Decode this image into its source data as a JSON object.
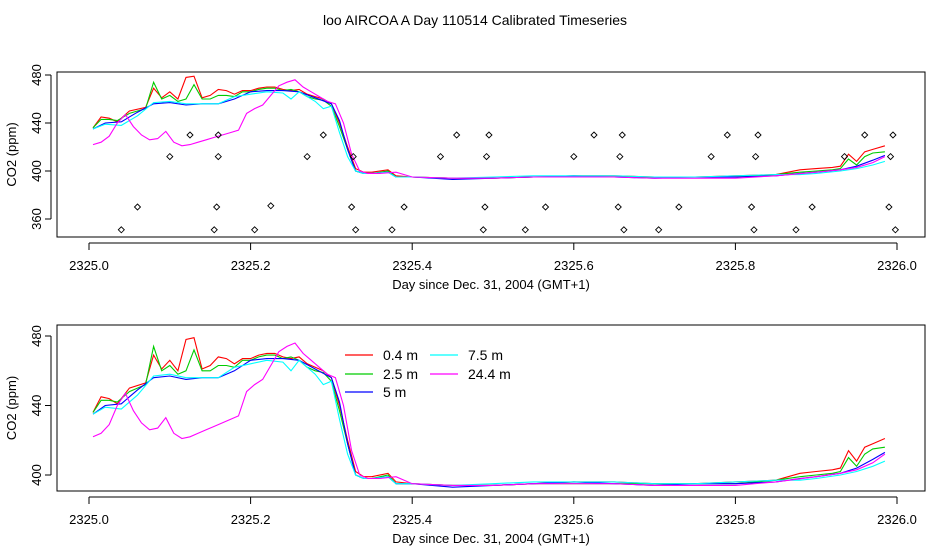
{
  "page": {
    "title": "loo AIRCOA A  Day 110514  Calibrated Timeseries"
  },
  "chart_data": [
    {
      "type": "line",
      "xlabel": "Day since Dec. 31, 2004 (GMT+1)",
      "ylabel": "CO2 (ppm)",
      "xlim": [
        2325.0,
        2326.0
      ],
      "ylim": [
        350,
        485
      ],
      "xticks": [
        "2325.0",
        "2325.2",
        "2325.4",
        "2325.6",
        "2325.8",
        "2326.0"
      ],
      "yticks": [
        "360",
        "400",
        "440",
        "480"
      ],
      "grid": false,
      "series": [
        {
          "color": "#ff0000",
          "x": [
            2325.005,
            2325.015,
            2325.025,
            2325.035,
            2325.05,
            2325.07,
            2325.08,
            2325.09,
            2325.1,
            2325.11,
            2325.12,
            2325.13,
            2325.14,
            2325.15,
            2325.16,
            2325.17,
            2325.18,
            2325.19,
            2325.2,
            2325.21,
            2325.22,
            2325.23,
            2325.24,
            2325.25,
            2325.26,
            2325.27,
            2325.28,
            2325.29,
            2325.3,
            2325.31,
            2325.32,
            2325.33,
            2325.34,
            2325.35,
            2325.37,
            2325.38,
            2325.4,
            2325.45,
            2325.5,
            2325.55,
            2325.6,
            2325.65,
            2325.7,
            2325.75,
            2325.8,
            2325.85,
            2325.88,
            2325.9,
            2325.92,
            2325.93,
            2325.94,
            2325.95,
            2325.96,
            2325.97,
            2325.985
          ],
          "y": [
            436,
            445,
            444,
            441,
            450,
            453,
            469,
            461,
            466,
            460,
            478,
            479,
            461,
            463,
            468,
            467,
            464,
            467,
            467,
            469,
            470,
            470,
            468,
            467,
            468,
            464,
            462,
            460,
            456,
            440,
            420,
            402,
            399,
            399,
            401,
            396,
            395,
            394,
            394,
            395,
            396,
            396,
            395,
            395,
            396,
            397,
            401,
            402,
            403,
            404,
            414,
            408,
            416,
            418,
            421
          ]
        },
        {
          "color": "#00cc00",
          "x": [
            2325.005,
            2325.015,
            2325.025,
            2325.035,
            2325.05,
            2325.07,
            2325.08,
            2325.09,
            2325.1,
            2325.11,
            2325.12,
            2325.13,
            2325.14,
            2325.15,
            2325.16,
            2325.17,
            2325.18,
            2325.19,
            2325.2,
            2325.21,
            2325.22,
            2325.23,
            2325.24,
            2325.25,
            2325.26,
            2325.27,
            2325.28,
            2325.29,
            2325.3,
            2325.31,
            2325.32,
            2325.33,
            2325.34,
            2325.35,
            2325.37,
            2325.38,
            2325.4,
            2325.45,
            2325.5,
            2325.55,
            2325.6,
            2325.65,
            2325.7,
            2325.75,
            2325.8,
            2325.85,
            2325.88,
            2325.9,
            2325.92,
            2325.93,
            2325.94,
            2325.95,
            2325.96,
            2325.97,
            2325.985
          ],
          "y": [
            436,
            443,
            443,
            442,
            448,
            452,
            474,
            460,
            463,
            458,
            460,
            472,
            460,
            460,
            463,
            463,
            462,
            466,
            466,
            468,
            469,
            469,
            467,
            468,
            466,
            462,
            460,
            459,
            454,
            437,
            418,
            400,
            398,
            398,
            400,
            395,
            395,
            394,
            394,
            395,
            395,
            395,
            395,
            395,
            395,
            397,
            399,
            400,
            401,
            402,
            410,
            405,
            412,
            415,
            416
          ]
        },
        {
          "color": "#0000ff",
          "x": [
            2325.005,
            2325.02,
            2325.04,
            2325.06,
            2325.08,
            2325.1,
            2325.12,
            2325.14,
            2325.16,
            2325.18,
            2325.2,
            2325.22,
            2325.24,
            2325.26,
            2325.28,
            2325.3,
            2325.31,
            2325.32,
            2325.33,
            2325.34,
            2325.35,
            2325.37,
            2325.38,
            2325.4,
            2325.45,
            2325.5,
            2325.55,
            2325.6,
            2325.65,
            2325.7,
            2325.75,
            2325.8,
            2325.85,
            2325.88,
            2325.9,
            2325.93,
            2325.95,
            2325.97,
            2325.985
          ],
          "y": [
            435,
            440,
            441,
            449,
            456,
            457,
            455,
            456,
            456,
            460,
            466,
            467,
            467,
            466,
            461,
            456,
            442,
            418,
            400,
            398,
            398,
            399,
            395,
            395,
            393,
            394,
            395,
            396,
            395,
            394,
            395,
            395,
            396,
            398,
            399,
            401,
            404,
            409,
            413
          ]
        },
        {
          "color": "#00ffff",
          "x": [
            2325.005,
            2325.02,
            2325.04,
            2325.06,
            2325.08,
            2325.1,
            2325.12,
            2325.14,
            2325.16,
            2325.18,
            2325.2,
            2325.22,
            2325.24,
            2325.25,
            2325.26,
            2325.28,
            2325.29,
            2325.3,
            2325.31,
            2325.32,
            2325.33,
            2325.34,
            2325.35,
            2325.37,
            2325.38,
            2325.4,
            2325.45,
            2325.5,
            2325.55,
            2325.6,
            2325.65,
            2325.7,
            2325.75,
            2325.8,
            2325.85,
            2325.88,
            2325.9,
            2325.93,
            2325.95,
            2325.97,
            2325.985
          ],
          "y": [
            435,
            439,
            438,
            446,
            457,
            458,
            456,
            456,
            456,
            462,
            464,
            466,
            465,
            460,
            466,
            458,
            452,
            454,
            432,
            412,
            400,
            398,
            398,
            399,
            395,
            395,
            394,
            395,
            396,
            396,
            396,
            395,
            395,
            396,
            397,
            397,
            398,
            400,
            402,
            405,
            408
          ]
        },
        {
          "color": "#ff00ff",
          "x": [
            2325.005,
            2325.015,
            2325.025,
            2325.035,
            2325.045,
            2325.055,
            2325.065,
            2325.075,
            2325.085,
            2325.095,
            2325.105,
            2325.115,
            2325.125,
            2325.135,
            2325.145,
            2325.155,
            2325.165,
            2325.175,
            2325.185,
            2325.195,
            2325.205,
            2325.215,
            2325.225,
            2325.235,
            2325.245,
            2325.255,
            2325.265,
            2325.275,
            2325.285,
            2325.295,
            2325.305,
            2325.315,
            2325.325,
            2325.335,
            2325.345,
            2325.36,
            2325.38,
            2325.4,
            2325.45,
            2325.5,
            2325.55,
            2325.6,
            2325.65,
            2325.7,
            2325.75,
            2325.8,
            2325.85,
            2325.9,
            2325.93,
            2325.95,
            2325.97,
            2325.985
          ],
          "y": [
            422,
            424,
            429,
            440,
            447,
            437,
            430,
            426,
            427,
            433,
            424,
            421,
            422,
            424,
            426,
            428,
            430,
            432,
            434,
            448,
            452,
            455,
            463,
            471,
            474,
            476,
            470,
            466,
            462,
            458,
            456,
            440,
            414,
            400,
            398,
            398,
            399,
            395,
            394,
            394,
            395,
            395,
            395,
            394,
            394,
            394,
            396,
            399,
            401,
            403,
            407,
            412
          ]
        }
      ],
      "diamonds": {
        "x": [
          2325.04,
          2325.06,
          2325.1,
          2325.125,
          2325.155,
          2325.158,
          2325.16,
          2325.16,
          2325.205,
          2325.225,
          2325.27,
          2325.29,
          2325.325,
          2325.327,
          2325.33,
          2325.375,
          2325.39,
          2325.435,
          2325.455,
          2325.488,
          2325.49,
          2325.492,
          2325.495,
          2325.54,
          2325.565,
          2325.6,
          2325.625,
          2325.655,
          2325.657,
          2325.66,
          2325.662,
          2325.705,
          2325.73,
          2325.77,
          2325.79,
          2325.82,
          2325.823,
          2325.825,
          2325.828,
          2325.875,
          2325.895,
          2325.935,
          2325.96,
          2325.99,
          2325.992,
          2325.995,
          2325.998
        ],
        "y": [
          351,
          370,
          412,
          430,
          351,
          370,
          412,
          430,
          351,
          371,
          412,
          430,
          370,
          412,
          351,
          351,
          370,
          412,
          430,
          351,
          370,
          412,
          430,
          351,
          370,
          412,
          430,
          370,
          412,
          430,
          351,
          351,
          370,
          412,
          430,
          370,
          351,
          412,
          430,
          351,
          370,
          412,
          430,
          370,
          412,
          430,
          351
        ]
      }
    },
    {
      "type": "line",
      "xlabel": "Day since Dec. 31, 2004 (GMT+1)",
      "ylabel": "CO2 (ppm)",
      "xlim": [
        2325.0,
        2326.0
      ],
      "ylim": [
        388,
        484
      ],
      "xticks": [
        "2325.0",
        "2325.2",
        "2325.4",
        "2325.6",
        "2325.8",
        "2326.0"
      ],
      "yticks": [
        "400",
        "440",
        "480"
      ],
      "grid": false,
      "legend_position": "top-center",
      "series": [
        {
          "name": "0.4 m",
          "color": "#ff0000",
          "ref": 0
        },
        {
          "name": "2.5 m",
          "color": "#00cc00",
          "ref": 1
        },
        {
          "name": "5 m",
          "color": "#0000ff",
          "ref": 2
        },
        {
          "name": "7.5 m",
          "color": "#00ffff",
          "ref": 3
        },
        {
          "name": "24.4 m",
          "color": "#ff00ff",
          "ref": 4
        }
      ]
    }
  ]
}
